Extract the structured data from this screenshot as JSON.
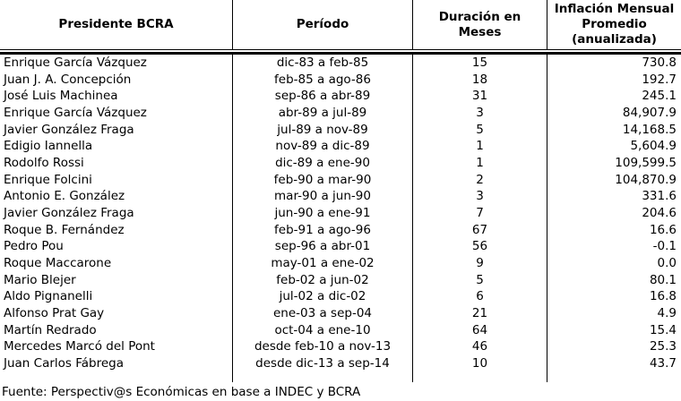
{
  "chart_data": {
    "type": "table",
    "columns": [
      {
        "key": "presidente",
        "label": "Presidente BCRA",
        "lines": [
          "Presidente BCRA"
        ]
      },
      {
        "key": "periodo",
        "label": "Período",
        "lines": [
          "Período"
        ]
      },
      {
        "key": "duracion",
        "label": "Duración en Meses",
        "lines": [
          "Duración en",
          "Meses"
        ]
      },
      {
        "key": "inflacion",
        "label": "Inflación Mensual Promedio (anualizada)",
        "lines": [
          "Inflación Mensual",
          "Promedio",
          "(anualizada)"
        ]
      }
    ],
    "rows": [
      {
        "presidente": "Enrique García Vázquez",
        "periodo": "dic-83 a feb-85",
        "duracion": "15",
        "inflacion": "730.8"
      },
      {
        "presidente": "Juan J. A. Concepción",
        "periodo": "feb-85 a ago-86",
        "duracion": "18",
        "inflacion": "192.7"
      },
      {
        "presidente": "José Luis Machinea",
        "periodo": "sep-86 a abr-89",
        "duracion": "31",
        "inflacion": "245.1"
      },
      {
        "presidente": "Enrique García Vázquez",
        "periodo": "abr-89 a jul-89",
        "duracion": "3",
        "inflacion": "84,907.9"
      },
      {
        "presidente": "Javier González Fraga",
        "periodo": "jul-89 a nov-89",
        "duracion": "5",
        "inflacion": "14,168.5"
      },
      {
        "presidente": "Edigio Iannella",
        "periodo": "nov-89 a dic-89",
        "duracion": "1",
        "inflacion": "5,604.9"
      },
      {
        "presidente": "Rodolfo Rossi",
        "periodo": "dic-89 a ene-90",
        "duracion": "1",
        "inflacion": "109,599.5"
      },
      {
        "presidente": "Enrique Folcini",
        "periodo": "feb-90 a mar-90",
        "duracion": "2",
        "inflacion": "104,870.9"
      },
      {
        "presidente": "Antonio E. González",
        "periodo": "mar-90 a jun-90",
        "duracion": "3",
        "inflacion": "331.6"
      },
      {
        "presidente": "Javier González Fraga",
        "periodo": "jun-90 a ene-91",
        "duracion": "7",
        "inflacion": "204.6"
      },
      {
        "presidente": "Roque B. Fernández",
        "periodo": "feb-91 a ago-96",
        "duracion": "67",
        "inflacion": "16.6"
      },
      {
        "presidente": "Pedro Pou",
        "periodo": "sep-96 a abr-01",
        "duracion": "56",
        "inflacion": "-0.1"
      },
      {
        "presidente": "Roque Maccarone",
        "periodo": "may-01 a ene-02",
        "duracion": "9",
        "inflacion": "0.0"
      },
      {
        "presidente": "Mario Blejer",
        "periodo": "feb-02 a jun-02",
        "duracion": "5",
        "inflacion": "80.1"
      },
      {
        "presidente": "Aldo Pignanelli",
        "periodo": "jul-02 a dic-02",
        "duracion": "6",
        "inflacion": "16.8"
      },
      {
        "presidente": "Alfonso Prat Gay",
        "periodo": "ene-03 a sep-04",
        "duracion": "21",
        "inflacion": "4.9"
      },
      {
        "presidente": "Martín Redrado",
        "periodo": "oct-04 a ene-10",
        "duracion": "64",
        "inflacion": "15.4"
      },
      {
        "presidente": "Mercedes Marcó del Pont",
        "periodo": "desde feb-10 a nov-13",
        "duracion": "46",
        "inflacion": "25.3"
      },
      {
        "presidente": "Juan Carlos Fábrega",
        "periodo": "desde dic-13 a sep-14",
        "duracion": "10",
        "inflacion": "43.7"
      }
    ],
    "source_note": "Fuente: Perspectiv@s Económicas en base a INDEC y BCRA"
  }
}
